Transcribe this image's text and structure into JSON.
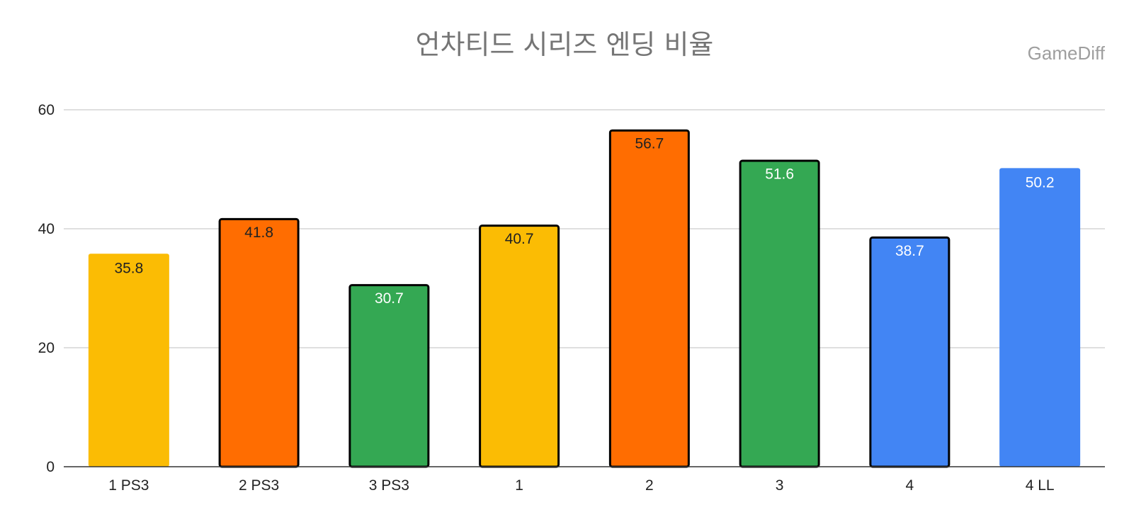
{
  "chart_data": {
    "type": "bar",
    "title": "언차티드 시리즈 엔딩 비율",
    "watermark": "GameDiff",
    "xlabel": "",
    "ylabel": "",
    "ylim": [
      0,
      60
    ],
    "yticks": [
      0,
      20,
      40,
      60
    ],
    "grid": true,
    "legend": "none",
    "categories": [
      "1 PS3",
      "2 PS3",
      "3 PS3",
      "1",
      "2",
      "3",
      "4",
      "4 LL"
    ],
    "values": [
      35.8,
      41.8,
      30.7,
      40.7,
      56.7,
      51.6,
      38.7,
      50.2
    ],
    "value_labels": [
      "35.8",
      "41.8",
      "30.7",
      "40.7",
      "56.7",
      "51.6",
      "38.7",
      "50.2"
    ],
    "bar_colors": [
      "#fbbc04",
      "#ff6d01",
      "#34a853",
      "#fbbc04",
      "#ff6d01",
      "#34a853",
      "#4285f4",
      "#4285f4"
    ],
    "bar_outlined": [
      false,
      true,
      true,
      true,
      true,
      true,
      true,
      false
    ],
    "label_colors": [
      "#222222",
      "#222222",
      "#ffffff",
      "#222222",
      "#222222",
      "#ffffff",
      "#ffffff",
      "#ffffff"
    ]
  }
}
